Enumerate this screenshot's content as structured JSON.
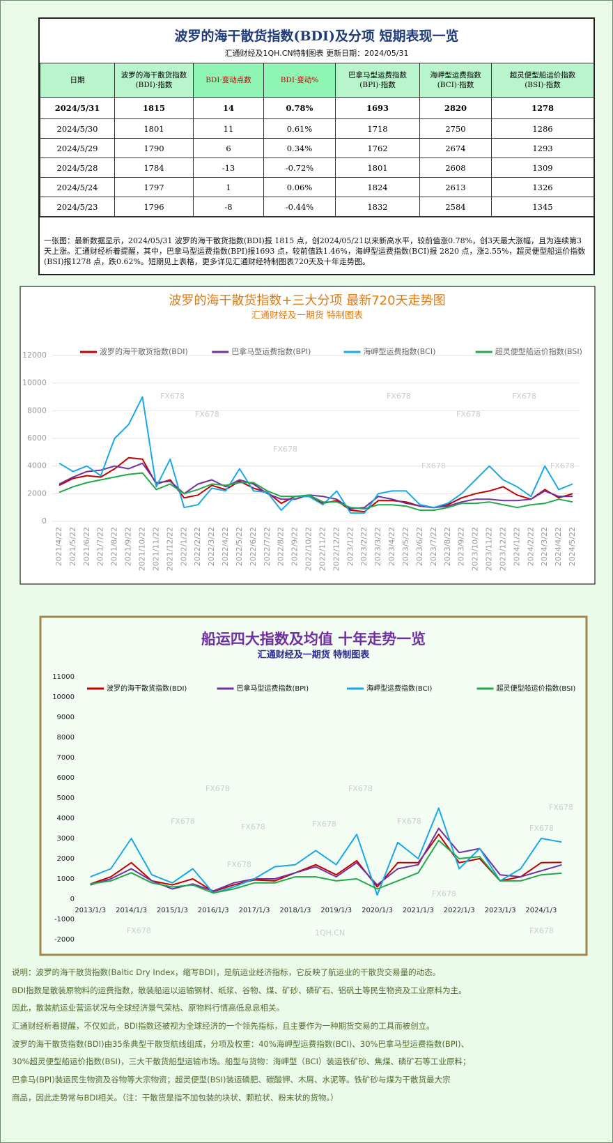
{
  "table": {
    "title": "波罗的海干散货指数(BDI)及分项  短期表现一览",
    "subtitle": "汇通财经及1QH.CN特制图表    更新日期：2024/05/31",
    "headers": [
      [
        "日期"
      ],
      [
        "波罗的海干散货指数",
        "(BDI)·指数"
      ],
      [
        "BDI·变动点数"
      ],
      [
        "BDI·变动%"
      ],
      [
        "巴拿马型运费指数",
        "(BPI)·指数"
      ],
      [
        "海岬型运费指数",
        "(BCI)·指数"
      ],
      [
        "超灵便型船运价指数",
        "(BSI)·指数"
      ]
    ],
    "rows": [
      [
        "2024/5/31",
        "1815",
        "14",
        "0.78%",
        "1693",
        "2820",
        "1278"
      ],
      [
        "2024/5/30",
        "1801",
        "11",
        "0.61%",
        "1718",
        "2750",
        "1286"
      ],
      [
        "2024/5/29",
        "1790",
        "6",
        "0.34%",
        "1762",
        "2674",
        "1293"
      ],
      [
        "2024/5/28",
        "1784",
        "-13",
        "-0.72%",
        "1801",
        "2608",
        "1309"
      ],
      [
        "2024/5/24",
        "1797",
        "1",
        "0.06%",
        "1824",
        "2613",
        "1326"
      ],
      [
        "2024/5/23",
        "1796",
        "-8",
        "-0.44%",
        "1832",
        "2584",
        "1345"
      ]
    ],
    "note": "一张图：最新数据显示，2024/05/31 波罗的海干散货指数(BDI)报 1815 点，创2024/05/21以来新高水平，较前值涨0.78%，创3天最大涨幅，且为连续第3天上涨。汇通财经析着提醒，其中，巴拿马型运费指数(BPI)报1693 点，较前值跌1.46%，海岬型运费指数(BCI)报 2820 点，涨2.55%，超灵便型船运价指数(BSI)报1278 点，跌0.62%。短期见上表格，更多详见汇通财经特制图表720天及十年走势图。"
  },
  "chart_data": [
    {
      "type": "line",
      "title": "波罗的海干散货指数+三大分项  最新720天走势图",
      "subtitle": "汇通财经及一期货  特制图表",
      "watermark": "FX678",
      "categories": [
        "2021/4/22",
        "2021/5/22",
        "2021/6/22",
        "2021/7/22",
        "2021/8/22",
        "2021/9/22",
        "2021/10/22",
        "2021/11/22",
        "2021/12/22",
        "2022/1/22",
        "2022/2/22",
        "2022/3/22",
        "2022/4/22",
        "2022/5/22",
        "2022/6/22",
        "2022/7/22",
        "2022/8/22",
        "2022/9/22",
        "2022/10/22",
        "2022/11/22",
        "2022/12/22",
        "2023/1/22",
        "2023/2/22",
        "2023/3/22",
        "2023/4/22",
        "2023/5/22",
        "2023/6/22",
        "2023/7/22",
        "2023/8/22",
        "2023/9/22",
        "2023/10/22",
        "2023/11/22",
        "2023/12/22",
        "2024/1/22",
        "2024/2/22",
        "2024/3/22",
        "2024/4/22",
        "2024/5/22"
      ],
      "series": [
        {
          "name": "波罗的海干散货指数(BDI)",
          "color": "#c00000",
          "values": [
            2600,
            3100,
            3300,
            3200,
            3800,
            4600,
            4500,
            2700,
            3000,
            1700,
            1900,
            2600,
            2300,
            2900,
            2400,
            2100,
            1300,
            1800,
            1800,
            1300,
            1500,
            800,
            700,
            1500,
            1500,
            1400,
            1100,
            1000,
            1200,
            1700,
            2000,
            2200,
            2500,
            1900,
            1600,
            2300,
            1700,
            2000
          ]
        },
        {
          "name": "巴拿马型运费指数(BPI)",
          "color": "#7030a0",
          "values": [
            2700,
            3200,
            3600,
            3700,
            4000,
            3800,
            4200,
            2800,
            2900,
            2000,
            2700,
            3000,
            2500,
            3000,
            2700,
            2000,
            1600,
            1600,
            1900,
            1800,
            1600,
            900,
            1000,
            1800,
            1600,
            1300,
            1100,
            1000,
            1100,
            1400,
            1600,
            1600,
            1500,
            1500,
            1600,
            2200,
            1800,
            1800
          ]
        },
        {
          "name": "海岬型运费指数(BCI)",
          "color": "#1aa7e6",
          "values": [
            4200,
            3600,
            4000,
            3300,
            6000,
            7000,
            9000,
            2500,
            4500,
            1000,
            1200,
            2400,
            2200,
            3800,
            2200,
            2100,
            800,
            1800,
            1800,
            1200,
            2200,
            600,
            600,
            2000,
            2200,
            2200,
            1200,
            1000,
            1300,
            2000,
            3000,
            4000,
            3000,
            2500,
            1800,
            4000,
            2300,
            2700
          ]
        },
        {
          "name": "超灵便型船运价指数(BSI)",
          "color": "#22a84a",
          "values": [
            2100,
            2500,
            2800,
            3000,
            3200,
            3400,
            3500,
            2300,
            2700,
            2000,
            2300,
            2700,
            2600,
            2800,
            2800,
            2200,
            1800,
            1800,
            1900,
            1400,
            1400,
            1000,
            900,
            1200,
            1200,
            1100,
            800,
            800,
            1000,
            1300,
            1300,
            1400,
            1200,
            1000,
            1200,
            1300,
            1600,
            1400
          ]
        }
      ],
      "ylim": [
        0,
        12000
      ],
      "yticks": [
        0,
        2000,
        4000,
        6000,
        8000,
        10000,
        12000
      ],
      "grid": true,
      "legend": "top"
    },
    {
      "type": "line",
      "title": "船运四大指数及均值 十年走势一览",
      "subtitle": "汇通财经及一期货 特制图表",
      "watermark": "FX678",
      "watermark2": "1QH.CN",
      "categories": [
        "2013/1/3",
        null,
        "2014/1/3",
        null,
        "2015/1/3",
        null,
        "2016/1/3",
        null,
        "2017/1/3",
        null,
        "2018/1/3",
        null,
        "2019/1/3",
        null,
        "2020/1/3",
        null,
        "2021/1/3",
        null,
        "2022/1/3",
        null,
        "2023/1/3",
        null,
        "2024/1/3",
        null
      ],
      "series": [
        {
          "name": "波罗的海干散货指数(BDI)",
          "color": "#c00000",
          "values": [
            750,
            1100,
            1800,
            900,
            700,
            1000,
            380,
            700,
            950,
            900,
            1300,
            1700,
            1200,
            1900,
            600,
            1800,
            1800,
            3200,
            1800,
            2000,
            900,
            1100,
            1800,
            1815
          ]
        },
        {
          "name": "巴拿马型运费指数(BPI)",
          "color": "#7030a0",
          "values": [
            700,
            1000,
            1500,
            900,
            500,
            750,
            400,
            800,
            1000,
            1000,
            1300,
            1600,
            1100,
            1800,
            700,
            1500,
            1700,
            3500,
            2300,
            2500,
            1200,
            1100,
            1400,
            1693
          ]
        },
        {
          "name": "海岬型运费指数(BCI)",
          "color": "#1aa7e6",
          "values": [
            1100,
            1500,
            3000,
            1200,
            800,
            1500,
            300,
            600,
            1000,
            1600,
            1700,
            2400,
            1700,
            3200,
            200,
            2800,
            2000,
            4500,
            1500,
            2500,
            900,
            1500,
            3000,
            2820
          ]
        },
        {
          "name": "超灵便型船运价指数(BSI)",
          "color": "#22a84a",
          "values": [
            750,
            900,
            1300,
            800,
            600,
            700,
            300,
            500,
            800,
            800,
            1100,
            1100,
            900,
            1000,
            500,
            900,
            1300,
            2900,
            2000,
            2100,
            900,
            900,
            1200,
            1278
          ]
        }
      ],
      "ylim": [
        -2000,
        11000
      ],
      "yticks": [
        -2000,
        -1000,
        0,
        1000,
        2000,
        3000,
        4000,
        5000,
        6000,
        7000,
        8000,
        9000,
        10000,
        11000
      ],
      "grid": false,
      "legend": "top"
    }
  ],
  "notes": [
    "说明：波罗的海干散货指数(Baltic Dry Index，缩写BDI)，是航运业经济指标，它反映了航运业的干散货交易量的动态。",
    "BDI指数是散装原物料的运费指数，散装船运以运输钢材、纸浆、谷物、煤、矿砂、磷矿石、铝矾土等民生物资及工业原料为主。",
    "因此，散装航运业营运状况与全球经济景气荣枯、原物料行情高低息息相关。",
    "汇通财经析着提醒，不仅如此，BDI指数还被视为全球经济的一个领先指标，且主要作为一种期货交易的工具而被创立。",
    "波罗的海干散货指数(BDI)由35条典型干散货航线组成，分项及权重：40%海岬型运费指数(BCI)、30%巴拿马型运费指数(BPI)、",
    "30%超灵便型船运价指数(BSI)，三大干散货船型运输市场。船型与货物：海岬型（BCI）装运铁矿砂、焦煤、磷矿石等工业原料；",
    "巴拿马(BPI)装运民生物资及谷物等大宗物资；超灵便型(BSI)装运磷肥、碳酸钾、木屑、水泥等。铁矿砂与煤为干散货最大宗",
    "商品，因此走势常与BDI相关。（注：干散货是指不加包装的块状、颗粒状、粉末状的货物。）"
  ]
}
